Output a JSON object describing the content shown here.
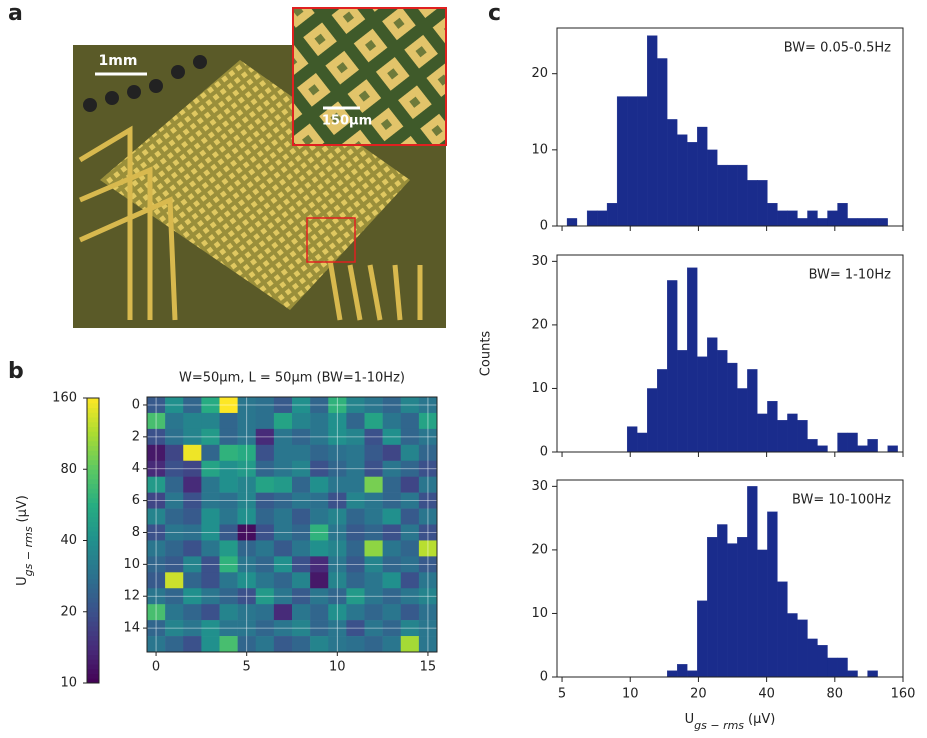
{
  "panel_labels": {
    "a": "a",
    "b": "b",
    "c": "c"
  },
  "micrograph": {
    "scale_main": "1mm",
    "scale_inset": "150µm"
  },
  "chart_data": [
    {
      "type": "heatmap",
      "title": "W=50µm, L = 50µm (BW=1-10Hz)",
      "colormap": "viridis",
      "grid": true,
      "xlim": [
        -0.5,
        15.5
      ],
      "ylim": [
        -0.5,
        15.5
      ],
      "y_inverted": true,
      "xticks": [
        0,
        5,
        10,
        15
      ],
      "yticks": [
        0,
        2,
        4,
        6,
        8,
        10,
        12,
        14
      ],
      "values": [
        [
          22,
          40,
          25,
          55,
          160,
          30,
          28,
          22,
          40,
          25,
          60,
          35,
          30,
          25,
          35,
          30
        ],
        [
          70,
          30,
          35,
          35,
          25,
          30,
          28,
          50,
          35,
          30,
          40,
          25,
          50,
          30,
          25,
          50
        ],
        [
          20,
          28,
          35,
          45,
          25,
          30,
          14,
          30,
          25,
          30,
          40,
          35,
          20,
          40,
          25,
          30
        ],
        [
          12,
          18,
          150,
          25,
          60,
          55,
          20,
          30,
          30,
          25,
          28,
          30,
          22,
          18,
          35,
          25
        ],
        [
          14,
          20,
          18,
          50,
          40,
          45,
          25,
          30,
          35,
          20,
          25,
          30,
          20,
          30,
          25,
          20
        ],
        [
          45,
          25,
          14,
          30,
          40,
          35,
          50,
          45,
          25,
          40,
          30,
          30,
          90,
          25,
          18,
          30
        ],
        [
          18,
          30,
          20,
          30,
          28,
          35,
          22,
          25,
          30,
          28,
          20,
          35,
          30,
          25,
          30,
          20
        ],
        [
          35,
          25,
          22,
          40,
          30,
          40,
          25,
          30,
          22,
          30,
          35,
          25,
          30,
          40,
          22,
          30
        ],
        [
          20,
          30,
          28,
          40,
          22,
          11,
          20,
          30,
          25,
          60,
          30,
          22,
          25,
          20,
          30,
          20
        ],
        [
          30,
          25,
          20,
          30,
          45,
          25,
          30,
          22,
          30,
          40,
          35,
          25,
          100,
          30,
          25,
          120
        ],
        [
          25,
          22,
          35,
          20,
          60,
          30,
          25,
          40,
          20,
          14,
          30,
          22,
          35,
          25,
          28,
          22
        ],
        [
          22,
          130,
          25,
          20,
          30,
          40,
          30,
          25,
          35,
          12,
          35,
          25,
          30,
          40,
          20,
          30
        ],
        [
          30,
          25,
          40,
          30,
          25,
          20,
          45,
          30,
          22,
          30,
          25,
          45,
          30,
          25,
          30,
          35
        ],
        [
          70,
          30,
          25,
          20,
          35,
          30,
          28,
          14,
          30,
          25,
          40,
          30,
          25,
          30,
          22,
          28
        ],
        [
          25,
          35,
          30,
          40,
          30,
          30,
          25,
          30,
          35,
          25,
          30,
          20,
          30,
          25,
          35,
          30
        ],
        [
          30,
          25,
          20,
          40,
          70,
          25,
          30,
          22,
          25,
          35,
          30,
          28,
          25,
          30,
          110,
          30
        ]
      ],
      "colorbar": {
        "lim": [
          10,
          160
        ],
        "log": true,
        "ticks": [
          10,
          20,
          40,
          80,
          160
        ],
        "label": {
          "main": "U",
          "sub": "gs − rms",
          "unit": "(μV)"
        }
      }
    },
    {
      "type": "histogram",
      "annotation": "BW= 0.05-0.5Hz",
      "color": "#1a2c8c",
      "log_x": true,
      "show_xtick_labels": false,
      "xlim": [
        4.75,
        160
      ],
      "ylim": [
        0,
        26
      ],
      "xticks": [
        5,
        10,
        20,
        40,
        80,
        160
      ],
      "yticks": [
        0,
        10,
        20
      ],
      "bins": [
        5.26,
        5.82,
        6.45,
        7.14,
        7.9,
        8.75,
        9.69,
        10.73,
        11.88,
        13.15,
        14.56,
        16.12,
        17.85,
        19.76,
        21.88,
        24.23,
        26.83,
        29.7,
        32.89,
        36.41,
        40.32,
        44.64,
        49.42,
        54.72,
        60.59,
        67.08,
        74.27,
        82.24,
        91.05,
        100.8,
        111.6,
        123.6,
        136.9,
        151.5
      ],
      "values": [
        1,
        0,
        2,
        2,
        3,
        17,
        17,
        17,
        25,
        22,
        14,
        12,
        11,
        13,
        10,
        8,
        8,
        8,
        6,
        6,
        3,
        2,
        2,
        1,
        2,
        1,
        2,
        3,
        1,
        1,
        1,
        1,
        0
      ]
    },
    {
      "type": "histogram",
      "annotation": "BW= 1-10Hz",
      "color": "#1a2c8c",
      "log_x": true,
      "show_xtick_labels": false,
      "ylabel": "Counts",
      "xlim": [
        4.75,
        160
      ],
      "ylim": [
        0,
        31
      ],
      "xticks": [
        5,
        10,
        20,
        40,
        80,
        160
      ],
      "yticks": [
        0,
        10,
        20,
        30
      ],
      "bins": [
        5.26,
        5.82,
        6.45,
        7.14,
        7.9,
        8.75,
        9.69,
        10.73,
        11.88,
        13.15,
        14.56,
        16.12,
        17.85,
        19.76,
        21.88,
        24.23,
        26.83,
        29.7,
        32.89,
        36.41,
        40.32,
        44.64,
        49.42,
        54.72,
        60.59,
        67.08,
        74.27,
        82.24,
        91.05,
        100.8,
        111.6,
        123.6,
        136.9,
        151.5
      ],
      "values": [
        0,
        0,
        0,
        0,
        0,
        0,
        4,
        3,
        10,
        13,
        27,
        16,
        29,
        15,
        18,
        16,
        14,
        10,
        13,
        6,
        8,
        5,
        6,
        5,
        2,
        1,
        0,
        3,
        3,
        1,
        2,
        0,
        1
      ]
    },
    {
      "type": "histogram",
      "annotation": "BW= 10-100Hz",
      "color": "#1a2c8c",
      "log_x": true,
      "show_xtick_labels": true,
      "xlabel": {
        "main": "U",
        "sub": "gs − rms",
        "unit": "(μV)"
      },
      "xlim": [
        4.75,
        160
      ],
      "ylim": [
        0,
        31
      ],
      "xticks": [
        5,
        10,
        20,
        40,
        80,
        160
      ],
      "yticks": [
        0,
        10,
        20,
        30
      ],
      "bins": [
        5.26,
        5.82,
        6.45,
        7.14,
        7.9,
        8.75,
        9.69,
        10.73,
        11.88,
        13.15,
        14.56,
        16.12,
        17.85,
        19.76,
        21.88,
        24.23,
        26.83,
        29.7,
        32.89,
        36.41,
        40.32,
        44.64,
        49.42,
        54.72,
        60.59,
        67.08,
        74.27,
        82.24,
        91.05,
        100.8,
        111.6,
        123.6,
        136.9,
        151.5
      ],
      "values": [
        0,
        0,
        0,
        0,
        0,
        0,
        0,
        0,
        0,
        0,
        1,
        2,
        1,
        12,
        22,
        24,
        21,
        22,
        30,
        20,
        26,
        15,
        10,
        9,
        6,
        5,
        3,
        3,
        1,
        0,
        1,
        0,
        0
      ]
    }
  ]
}
